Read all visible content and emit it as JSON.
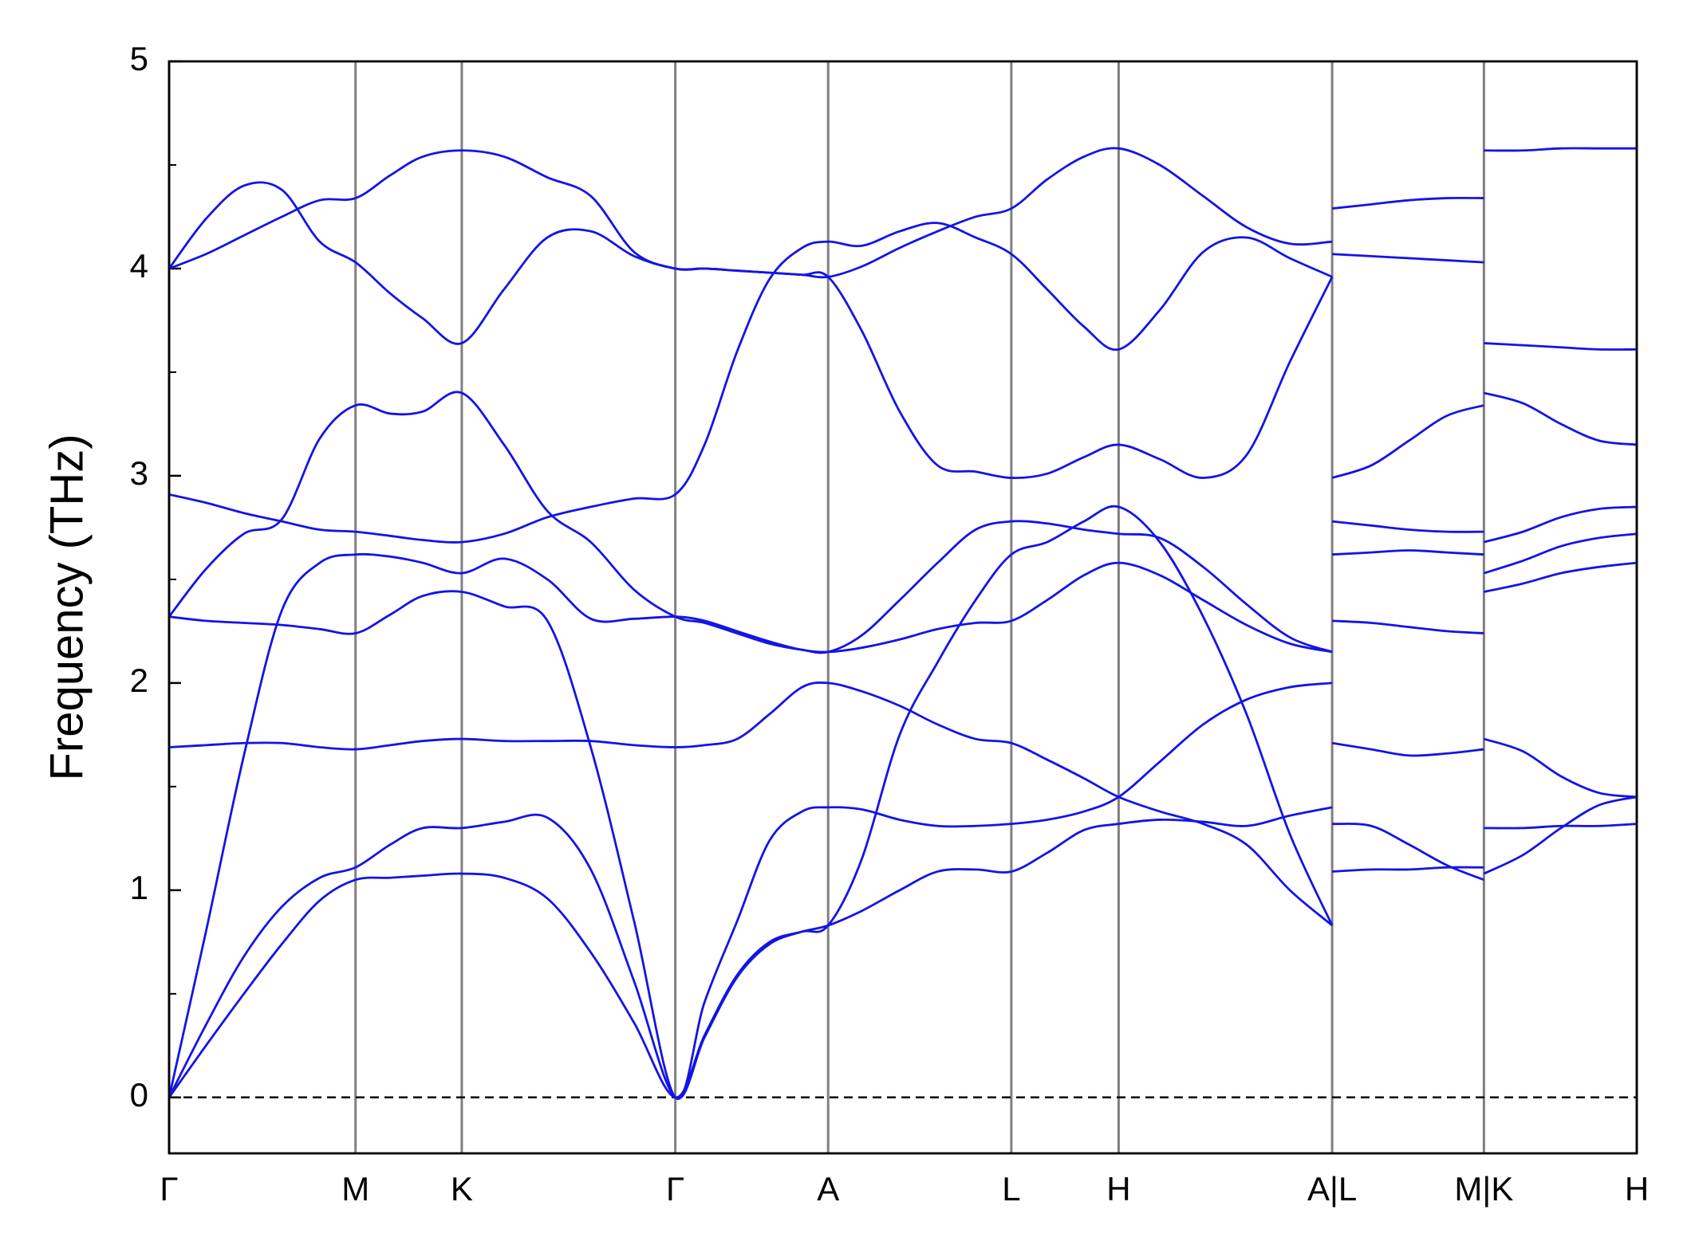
{
  "chart_data": {
    "type": "line",
    "ylabel": "Frequency (THz)",
    "x": [
      0,
      0.034,
      0.069,
      0.104,
      0.139,
      0.172,
      0.204,
      0.234,
      0.27,
      0.309,
      0.349,
      0.389,
      0.429,
      0.467,
      0.494,
      0.524,
      0.554,
      0.584,
      0.608,
      0.639,
      0.674,
      0.709,
      0.744,
      0.777,
      0.81,
      0.844,
      0.876,
      0.914,
      0.954,
      0.994,
      1.034,
      1.073,
      1.073,
      1.073,
      1.109,
      1.144,
      1.179,
      1.213,
      1.213,
      1.213,
      1.249,
      1.284,
      1.319,
      1.354
    ],
    "xlim": [
      0,
      1.354
    ],
    "xticks": [
      {
        "value": 0,
        "label": "Γ"
      },
      {
        "value": 0.172,
        "label": "M"
      },
      {
        "value": 0.27,
        "label": "K"
      },
      {
        "value": 0.467,
        "label": "Γ"
      },
      {
        "value": 0.608,
        "label": "A"
      },
      {
        "value": 0.777,
        "label": "L"
      },
      {
        "value": 0.876,
        "label": "H"
      },
      {
        "value": 1.073,
        "label": "A|L"
      },
      {
        "value": 1.213,
        "label": "M|K"
      },
      {
        "value": 1.354,
        "label": "H"
      }
    ],
    "xtick_lines": true,
    "ylim": [
      -0.27,
      5
    ],
    "yticks": [
      0,
      1,
      2,
      3,
      4,
      5
    ],
    "yminorticks": [
      0.5,
      1.5,
      2.5,
      3.5,
      4.5
    ],
    "hlines": [
      0
    ],
    "series": [
      {
        "color": "#1414e6",
        "values": [
          0,
          0.25,
          0.5,
          0.74,
          0.95,
          1.05,
          1.06,
          1.07,
          1.08,
          1.06,
          0.96,
          0.7,
          0.36,
          0,
          0.3,
          0.59,
          0.75,
          0.8,
          0.83,
          0.9,
          1.0,
          1.09,
          1.1,
          1.09,
          1.18,
          1.29,
          1.32,
          1.34,
          1.33,
          1.31,
          1.36,
          1.4,
          null,
          1.09,
          1.1,
          1.1,
          1.11,
          1.11,
          null,
          1.08,
          1.17,
          1.3,
          1.41,
          1.45
        ]
      },
      {
        "color": "#1414e6",
        "values": [
          0,
          0.35,
          0.68,
          0.92,
          1.06,
          1.11,
          1.22,
          1.3,
          1.3,
          1.33,
          1.35,
          1.1,
          0.56,
          0,
          0.29,
          0.58,
          0.74,
          0.8,
          0.83,
          1.15,
          1.75,
          2.1,
          2.4,
          2.62,
          2.68,
          2.78,
          2.85,
          2.68,
          2.32,
          1.85,
          1.27,
          0.83,
          null,
          2.62,
          2.63,
          2.64,
          2.63,
          2.62,
          null,
          1.3,
          1.3,
          1.31,
          1.31,
          1.32
        ]
      },
      {
        "color": "#1414e6",
        "values": [
          0,
          0.8,
          1.65,
          2.35,
          2.58,
          2.62,
          2.61,
          2.58,
          2.53,
          2.6,
          2.5,
          2.31,
          2.31,
          2.32,
          2.3,
          2.25,
          2.2,
          2.16,
          2.15,
          2.17,
          2.21,
          2.26,
          2.29,
          2.3,
          2.4,
          2.52,
          2.58,
          2.52,
          2.4,
          2.28,
          2.19,
          2.15,
          null,
          2.3,
          2.29,
          2.27,
          2.25,
          2.24,
          null,
          2.53,
          2.59,
          2.66,
          2.7,
          2.72
        ]
      },
      {
        "color": "#1414e6",
        "values": [
          1.69,
          1.7,
          1.71,
          1.71,
          1.69,
          1.68,
          1.7,
          1.72,
          1.73,
          1.72,
          1.72,
          1.72,
          1.7,
          1.69,
          1.7,
          1.73,
          1.85,
          1.98,
          2.0,
          1.96,
          1.89,
          1.8,
          1.73,
          1.71,
          1.63,
          1.54,
          1.45,
          1.38,
          1.32,
          1.22,
          1.0,
          0.83,
          null,
          1.71,
          1.68,
          1.65,
          1.66,
          1.68,
          null,
          1.73,
          1.67,
          1.55,
          1.47,
          1.45
        ]
      },
      {
        "color": "#1414e6",
        "values": [
          2.32,
          2.3,
          2.29,
          2.28,
          2.26,
          2.24,
          2.33,
          2.42,
          2.44,
          2.37,
          2.3,
          1.69,
          0.85,
          0,
          0.46,
          0.85,
          1.24,
          1.38,
          1.4,
          1.39,
          1.34,
          1.31,
          1.31,
          1.32,
          1.34,
          1.38,
          1.45,
          1.62,
          1.8,
          1.92,
          1.98,
          2.0,
          null,
          1.32,
          1.31,
          1.22,
          1.12,
          1.05,
          null,
          2.44,
          2.48,
          2.53,
          2.56,
          2.58
        ]
      },
      {
        "color": "#1414e6",
        "values": [
          2.32,
          2.55,
          2.72,
          2.79,
          3.18,
          3.34,
          3.3,
          3.31,
          3.4,
          3.15,
          2.83,
          2.68,
          2.45,
          2.32,
          2.29,
          2.24,
          2.19,
          2.16,
          2.15,
          2.23,
          2.4,
          2.58,
          2.74,
          2.78,
          2.77,
          2.74,
          2.72,
          2.7,
          2.56,
          2.38,
          2.22,
          2.15,
          null,
          2.78,
          2.76,
          2.74,
          2.73,
          2.73,
          null,
          3.4,
          3.35,
          3.25,
          3.17,
          3.15
        ]
      },
      {
        "color": "#1414e6",
        "values": [
          2.91,
          2.87,
          2.82,
          2.78,
          2.74,
          2.73,
          2.71,
          2.69,
          2.68,
          2.72,
          2.8,
          2.85,
          2.89,
          2.91,
          3.15,
          3.6,
          3.95,
          4.1,
          4.13,
          4.11,
          4.18,
          4.22,
          4.15,
          4.07,
          3.9,
          3.72,
          3.61,
          3.8,
          4.08,
          4.15,
          4.05,
          3.96,
          null,
          4.07,
          4.06,
          4.05,
          4.04,
          4.03,
          null,
          2.68,
          2.73,
          2.8,
          2.84,
          2.85
        ]
      },
      {
        "color": "#1414e6",
        "values": [
          4.0,
          4.07,
          4.16,
          4.25,
          4.33,
          4.34,
          4.45,
          4.54,
          4.57,
          4.54,
          4.44,
          4.35,
          4.08,
          4.0,
          4.0,
          3.99,
          3.98,
          3.97,
          3.96,
          3.7,
          3.31,
          3.05,
          3.02,
          2.99,
          3.01,
          3.09,
          3.15,
          3.08,
          2.99,
          3.1,
          3.55,
          3.96,
          null,
          2.99,
          3.05,
          3.17,
          3.29,
          3.34,
          null,
          4.57,
          4.57,
          4.58,
          4.58,
          4.58
        ]
      },
      {
        "color": "#1414e6",
        "values": [
          4.0,
          4.24,
          4.4,
          4.38,
          4.13,
          4.03,
          3.88,
          3.76,
          3.64,
          3.9,
          4.15,
          4.18,
          4.06,
          4.0,
          4.0,
          3.99,
          3.98,
          3.97,
          3.96,
          4.01,
          4.1,
          4.18,
          4.25,
          4.29,
          4.43,
          4.54,
          4.58,
          4.5,
          4.35,
          4.2,
          4.12,
          4.13,
          null,
          4.29,
          4.31,
          4.33,
          4.34,
          4.34,
          null,
          3.64,
          3.63,
          3.62,
          3.61,
          3.61
        ]
      }
    ]
  }
}
